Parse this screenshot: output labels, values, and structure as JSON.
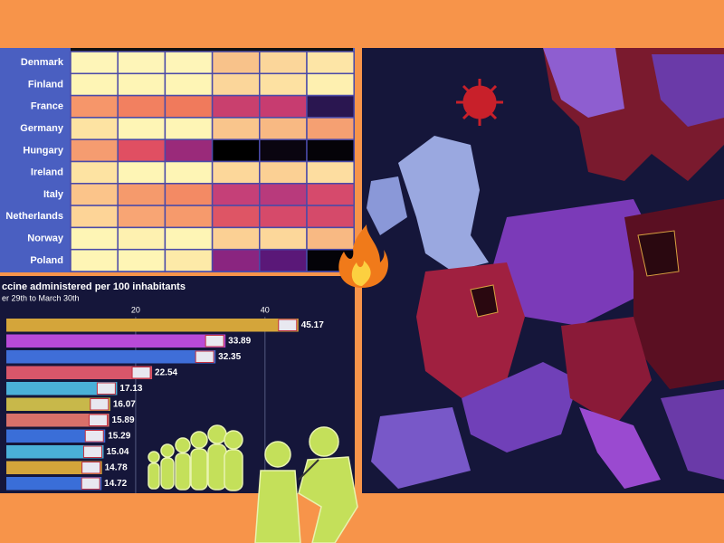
{
  "heatmap": {
    "rows": [
      "Denmark",
      "Finland",
      "France",
      "Germany",
      "Hungary",
      "Ireland",
      "Italy",
      "Netherlands",
      "Norway",
      "Poland"
    ],
    "cell_colors": [
      [
        "#fef5b8",
        "#fef5b8",
        "#fef5b8",
        "#f8c28a",
        "#fbd69a",
        "#fde5a6"
      ],
      [
        "#fef5b5",
        "#fef5b5",
        "#fef5b5",
        "#fbd69a",
        "#fde1a2",
        "#fef0b0"
      ],
      [
        "#f6966a",
        "#f28060",
        "#f07a5c",
        "#c9406e",
        "#c73c70",
        "#2a1650"
      ],
      [
        "#fde3a2",
        "#fef5b5",
        "#fef5b5",
        "#f9c58c",
        "#f8b983",
        "#f5a072"
      ],
      [
        "#f59c70",
        "#e04f62",
        "#9a2a7a",
        "#000000",
        "#0a0510",
        "#050308"
      ],
      [
        "#fde3a2",
        "#fef5b5",
        "#fef5b5",
        "#fcd79a",
        "#fbd094",
        "#fddda0"
      ],
      [
        "#fbc48a",
        "#f59a6c",
        "#f38a64",
        "#c54078",
        "#b83a7c",
        "#d64a6c"
      ],
      [
        "#fdd497",
        "#f8a574",
        "#f69a6c",
        "#de5565",
        "#d64a6a",
        "#d54a6a"
      ],
      [
        "#fef5b5",
        "#fef1b0",
        "#fef5b5",
        "#fbd094",
        "#fcd79a",
        "#f8b983"
      ],
      [
        "#fef5b5",
        "#fef5b5",
        "#fdeaa8",
        "#8a2580",
        "#5a1878",
        "#040308"
      ]
    ]
  },
  "chart_data": {
    "type": "bar",
    "orientation": "horizontal",
    "title": "ccine administered per 100 inhabitants",
    "subtitle": "er 29th to March 30th",
    "values": [
      45.17,
      33.89,
      32.35,
      22.54,
      17.13,
      16.07,
      15.89,
      15.29,
      15.04,
      14.78,
      14.72
    ],
    "colors": [
      "#d4a53a",
      "#b84ad8",
      "#3f6ed8",
      "#d8566a",
      "#4ab0d8",
      "#c8b84a",
      "#d8706a",
      "#3a6ed8",
      "#4ab0d8",
      "#d4a53a",
      "#3a6ed8"
    ],
    "xlim": [
      0,
      55
    ],
    "xticks": [
      20,
      40
    ],
    "grid": true
  }
}
